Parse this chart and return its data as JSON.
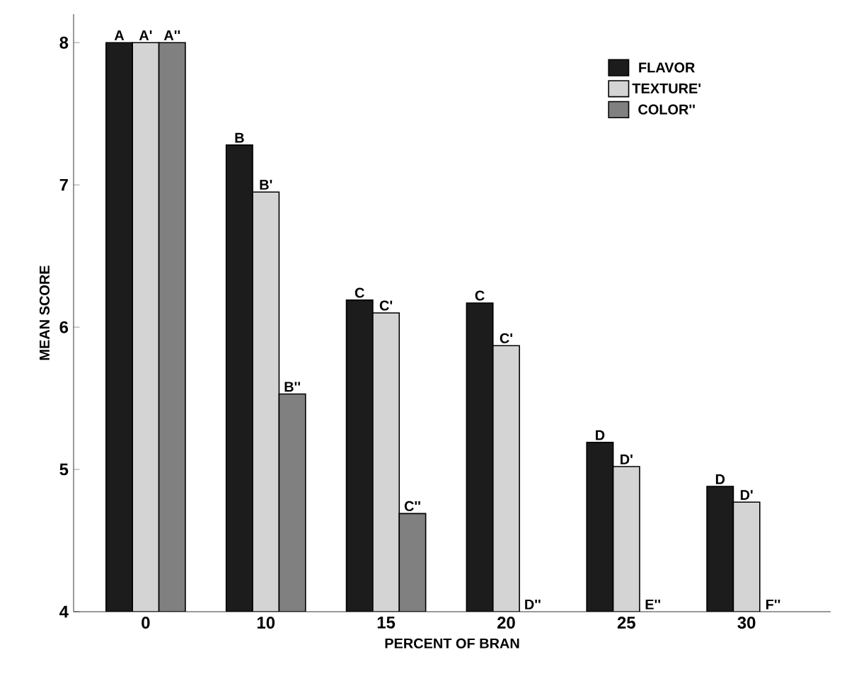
{
  "chart_data": {
    "type": "bar",
    "xlabel": "PERCENT OF BRAN",
    "ylabel": "MEAN SCORE",
    "categories": [
      "0",
      "10",
      "15",
      "20",
      "25",
      "30"
    ],
    "series": [
      {
        "name": "FLAVOR",
        "color": "#1c1c1c",
        "values": [
          8.0,
          7.28,
          6.19,
          6.17,
          5.19,
          4.88
        ],
        "value_labels": [
          "A",
          "B",
          "C",
          "C",
          "D",
          "D"
        ]
      },
      {
        "name": "TEXTURE'",
        "color": "#d4d4d4",
        "values": [
          8.0,
          6.95,
          6.1,
          5.87,
          5.02,
          4.77
        ],
        "value_labels": [
          "A'",
          "B'",
          "C'",
          "C'",
          "D'",
          "D'"
        ]
      },
      {
        "name": "COLOR''",
        "color": "#808080",
        "values": [
          8.0,
          5.53,
          4.69,
          null,
          null,
          null
        ],
        "value_labels": [
          "A''",
          "B''",
          "C''",
          null,
          null,
          null
        ]
      }
    ],
    "annotations": [
      {
        "text": "D''",
        "x": "20",
        "y": 4
      },
      {
        "text": "E''",
        "x": "25",
        "y": 4
      },
      {
        "text": "F''",
        "x": "30",
        "y": 4
      }
    ],
    "ylim": [
      4,
      8.2
    ],
    "yticks": [
      4,
      5,
      6,
      7,
      8
    ],
    "grid": false,
    "legend": "top right"
  }
}
